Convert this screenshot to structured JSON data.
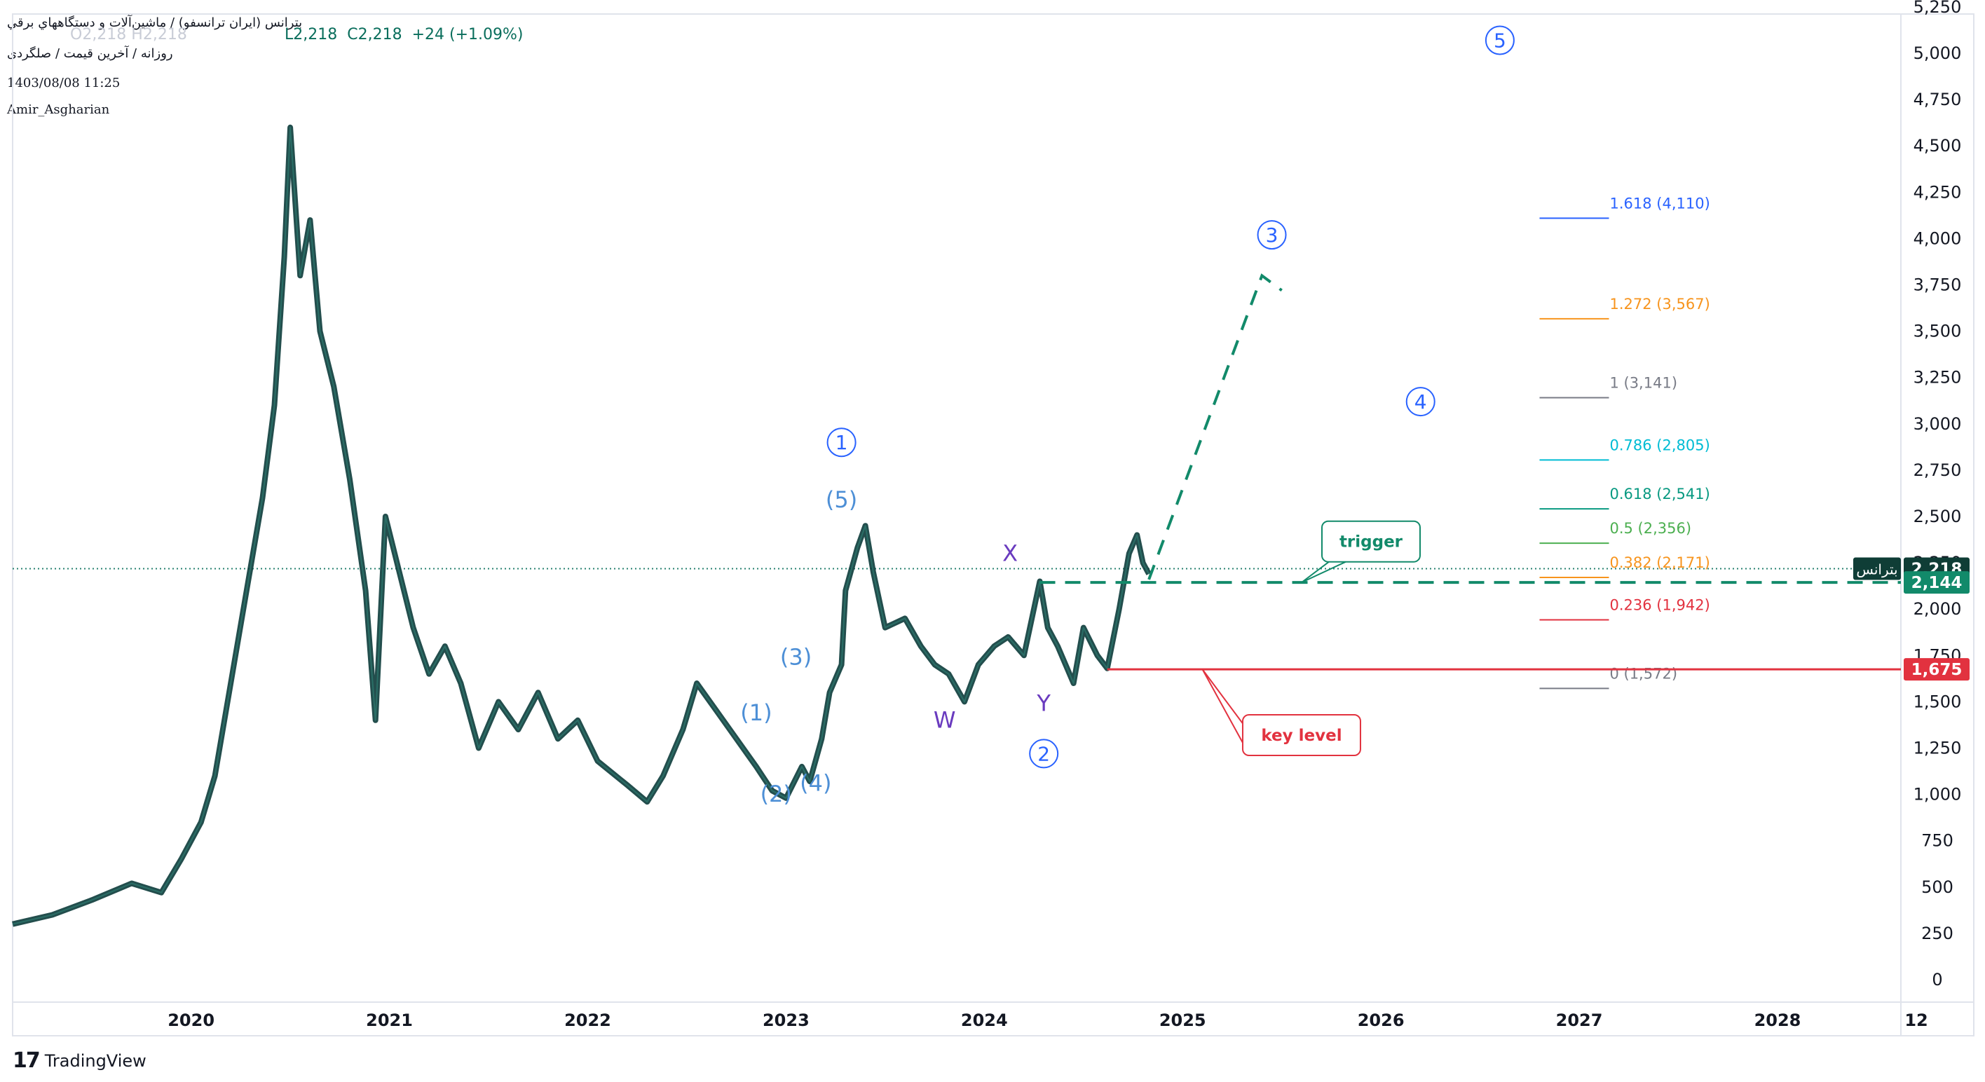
{
  "header": {
    "symbol_line": "بترانس (ايران ترانسفو) / ماشين‌آلات و دستگاههاي برقي",
    "ohlc_low": "L2,218",
    "ohlc_close": "C2,218",
    "ohlc_change": "+24 (+1.09%)",
    "ohlc_ghost": "O2,218  H2,218",
    "interval_line": "روزانه / آخرین قیمت / صلگردی",
    "date": "1403/08/08 11:25",
    "author": "Amir_Asgharian"
  },
  "brand": {
    "logo": "17",
    "name": "TradingView"
  },
  "colors": {
    "candle": "#0b3b3a",
    "trigger": "#128a6a",
    "key_level": "#e2323f",
    "wave_blue": "#2962ff",
    "wave_light": "#4d8fd6",
    "wxy": "#6a3bbf",
    "price_dots": "#26806f"
  },
  "chart_data": {
    "type": "line",
    "title": "",
    "xlabel": "",
    "ylabel": "",
    "ylim": [
      -50,
      5500
    ],
    "y_ticks": [
      0,
      250,
      500,
      750,
      1000,
      1250,
      1500,
      1750,
      2000,
      2250,
      2500,
      2750,
      3000,
      3250,
      3500,
      3750,
      4000,
      4250,
      4500,
      4750,
      5000,
      5250
    ],
    "y_tick_labels": [
      "0",
      "250",
      "500",
      "750",
      "1,000",
      "1,250",
      "1,500",
      "1,750",
      "2,000",
      "2,250",
      "2,500",
      "2,750",
      "3,000",
      "3,250",
      "3,500",
      "3,750",
      "4,000",
      "4,250",
      "4,500",
      "4,750",
      "5,000",
      "5,250"
    ],
    "x_tick_labels": [
      {
        "t": 2020.0,
        "label": "2020"
      },
      {
        "t": 2021.0,
        "label": "2021"
      },
      {
        "t": 2022.0,
        "label": "2022"
      },
      {
        "t": 2023.0,
        "label": "2023"
      },
      {
        "t": 2024.0,
        "label": "2024"
      },
      {
        "t": 2025.0,
        "label": "2025"
      },
      {
        "t": 2026.0,
        "label": "2026"
      },
      {
        "t": 2027.0,
        "label": "2027"
      },
      {
        "t": 2028.0,
        "label": "2028"
      },
      {
        "t": 2028.7,
        "label": "12"
      }
    ],
    "price_path": [
      [
        2019.1,
        300
      ],
      [
        2019.3,
        350
      ],
      [
        2019.5,
        430
      ],
      [
        2019.7,
        520
      ],
      [
        2019.85,
        470
      ],
      [
        2019.95,
        650
      ],
      [
        2020.05,
        850
      ],
      [
        2020.12,
        1100
      ],
      [
        2020.2,
        1600
      ],
      [
        2020.28,
        2100
      ],
      [
        2020.36,
        2600
      ],
      [
        2020.42,
        3100
      ],
      [
        2020.47,
        3900
      ],
      [
        2020.5,
        4600
      ],
      [
        2020.55,
        3800
      ],
      [
        2020.6,
        4100
      ],
      [
        2020.65,
        3500
      ],
      [
        2020.72,
        3200
      ],
      [
        2020.8,
        2700
      ],
      [
        2020.88,
        2100
      ],
      [
        2020.93,
        1400
      ],
      [
        2020.98,
        2500
      ],
      [
        2021.05,
        2200
      ],
      [
        2021.12,
        1900
      ],
      [
        2021.2,
        1650
      ],
      [
        2021.28,
        1800
      ],
      [
        2021.36,
        1600
      ],
      [
        2021.45,
        1250
      ],
      [
        2021.55,
        1500
      ],
      [
        2021.65,
        1350
      ],
      [
        2021.75,
        1550
      ],
      [
        2021.85,
        1300
      ],
      [
        2021.95,
        1400
      ],
      [
        2022.05,
        1180
      ],
      [
        2022.2,
        1050
      ],
      [
        2022.3,
        960
      ],
      [
        2022.38,
        1100
      ],
      [
        2022.48,
        1350
      ],
      [
        2022.55,
        1600
      ],
      [
        2022.65,
        1450
      ],
      [
        2022.75,
        1300
      ],
      [
        2022.85,
        1150
      ],
      [
        2022.93,
        1020
      ],
      [
        2023.0,
        980
      ],
      [
        2023.08,
        1150
      ],
      [
        2023.12,
        1070
      ],
      [
        2023.18,
        1300
      ],
      [
        2023.22,
        1550
      ],
      [
        2023.28,
        1700
      ],
      [
        2023.3,
        2100
      ],
      [
        2023.36,
        2330
      ],
      [
        2023.4,
        2450
      ],
      [
        2023.44,
        2200
      ],
      [
        2023.5,
        1900
      ],
      [
        2023.6,
        1950
      ],
      [
        2023.68,
        1800
      ],
      [
        2023.75,
        1700
      ],
      [
        2023.82,
        1650
      ],
      [
        2023.9,
        1500
      ],
      [
        2023.97,
        1700
      ],
      [
        2024.05,
        1800
      ],
      [
        2024.12,
        1850
      ],
      [
        2024.2,
        1750
      ],
      [
        2024.28,
        2150
      ],
      [
        2024.32,
        1900
      ],
      [
        2024.37,
        1800
      ],
      [
        2024.45,
        1600
      ],
      [
        2024.5,
        1900
      ],
      [
        2024.57,
        1750
      ],
      [
        2024.62,
        1680
      ],
      [
        2024.68,
        2000
      ],
      [
        2024.73,
        2300
      ],
      [
        2024.77,
        2400
      ],
      [
        2024.8,
        2250
      ],
      [
        2024.83,
        2190
      ]
    ],
    "fib_levels": [
      {
        "ratio": "1.618",
        "price": 4110,
        "label": "1.618 (4,110)",
        "color": "#2962ff"
      },
      {
        "ratio": "1.272",
        "price": 3567,
        "label": "1.272 (3,567)",
        "color": "#f7941d"
      },
      {
        "ratio": "1",
        "price": 3141,
        "label": "1 (3,141)",
        "color": "#787b86"
      },
      {
        "ratio": "0.786",
        "price": 2805,
        "label": "0.786 (2,805)",
        "color": "#00bcd4"
      },
      {
        "ratio": "0.618",
        "price": 2541,
        "label": "0.618 (2,541)",
        "color": "#089981"
      },
      {
        "ratio": "0.5",
        "price": 2356,
        "label": "0.5 (2,356)",
        "color": "#4caf50"
      },
      {
        "ratio": "0.382",
        "price": 2171,
        "label": "0.382 (2,171)",
        "color": "#f7941d"
      },
      {
        "ratio": "0.236",
        "price": 1942,
        "label": "0.236 (1,942)",
        "color": "#e2323f"
      },
      {
        "ratio": "0",
        "price": 1572,
        "label": "0 (1,572)",
        "color": "#787b86"
      }
    ],
    "fib_x_range": [
      2026.8,
      2027.15
    ],
    "current_price": 2218,
    "trigger_price": 2144,
    "key_level_price": 1675,
    "trigger_x_start": 2024.28,
    "key_level_x_start": 2024.62,
    "projection_path": [
      [
        2024.83,
        2160
      ],
      [
        2025.4,
        3800
      ],
      [
        2025.5,
        3720
      ]
    ],
    "wave_labels": [
      {
        "t": 2023.28,
        "price": 2900,
        "text": "1",
        "style": "circle"
      },
      {
        "t": 2024.3,
        "price": 1220,
        "text": "2",
        "style": "circle"
      },
      {
        "t": 2025.45,
        "price": 4020,
        "text": "3",
        "style": "circle"
      },
      {
        "t": 2026.2,
        "price": 3120,
        "text": "4",
        "style": "circle"
      },
      {
        "t": 2026.6,
        "price": 5070,
        "text": "5",
        "style": "circle"
      },
      {
        "t": 2022.85,
        "price": 1400,
        "text": "(1)",
        "style": "sub"
      },
      {
        "t": 2022.95,
        "price": 960,
        "text": "(2)",
        "style": "sub"
      },
      {
        "t": 2023.05,
        "price": 1700,
        "text": "(3)",
        "style": "sub"
      },
      {
        "t": 2023.15,
        "price": 1020,
        "text": "(4)",
        "style": "sub"
      },
      {
        "t": 2023.28,
        "price": 2550,
        "text": "(5)",
        "style": "sub"
      },
      {
        "t": 2023.8,
        "price": 1360,
        "text": "W",
        "style": "wxy"
      },
      {
        "t": 2024.13,
        "price": 2260,
        "text": "X",
        "style": "wxy"
      },
      {
        "t": 2024.3,
        "price": 1450,
        "text": "Y",
        "style": "wxy"
      }
    ],
    "annotations": [
      {
        "text": "trigger",
        "t": 2025.95,
        "price": 2365,
        "color": "#128a6a",
        "point_t": 2025.6,
        "point_price": 2144
      },
      {
        "text": "key level",
        "t": 2025.6,
        "price": 1320,
        "color": "#e2323f",
        "point_t": 2025.1,
        "point_price": 1675
      }
    ],
    "price_tags": [
      {
        "label": "بترانس",
        "value": "2,218",
        "price": 2218,
        "color": "#0f3d36"
      },
      {
        "value": "2,144",
        "price": 2144,
        "color": "#128a6a"
      },
      {
        "value": "1,675",
        "price": 1675,
        "color": "#e2323f"
      }
    ]
  }
}
